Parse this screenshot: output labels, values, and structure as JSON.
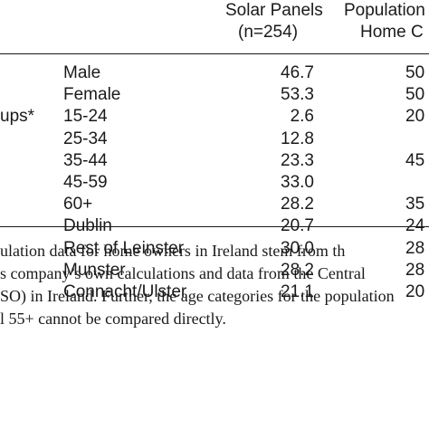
{
  "table": {
    "headers": {
      "solar_line1": "Solar Panels",
      "solar_line2": "(n=254)",
      "pop_line1": "Population",
      "pop_line2": "Home C"
    },
    "rows": [
      {
        "group": "",
        "label": "Male",
        "solar": "46.7",
        "pop": "50"
      },
      {
        "group": "",
        "label": "Female",
        "solar": "53.3",
        "pop": "50"
      },
      {
        "group": "ups*",
        "label": "15-24",
        "solar": "2.6",
        "pop": "20"
      },
      {
        "group": "",
        "label": "25-34",
        "solar": "12.8",
        "pop": ""
      },
      {
        "group": "",
        "label": "35-44",
        "solar": "23.3",
        "pop": "45"
      },
      {
        "group": "",
        "label": "45-59",
        "solar": "33.0",
        "pop": ""
      },
      {
        "group": "",
        "label": "60+",
        "solar": "28.2",
        "pop": "35"
      },
      {
        "group": "",
        "label": "Dublin",
        "solar": "20.7",
        "pop": "24"
      },
      {
        "group": "",
        "label": "Rest of Leinster",
        "solar": "30.0",
        "pop": "28"
      },
      {
        "group": "",
        "label": "Munster",
        "solar": "28.2",
        "pop": "28"
      },
      {
        "group": "",
        "label": "Connacht/Ulster",
        "solar": "21.1",
        "pop": "20"
      }
    ]
  },
  "footnote": {
    "line1": "ulation data for home owners in Ireland stem from th",
    "line2": "s company’s own calculations and data from the Central",
    "line3": "SO) in Ireland. Further, the age categories for the population",
    "line4": "l 55+ cannot be compared directly."
  }
}
